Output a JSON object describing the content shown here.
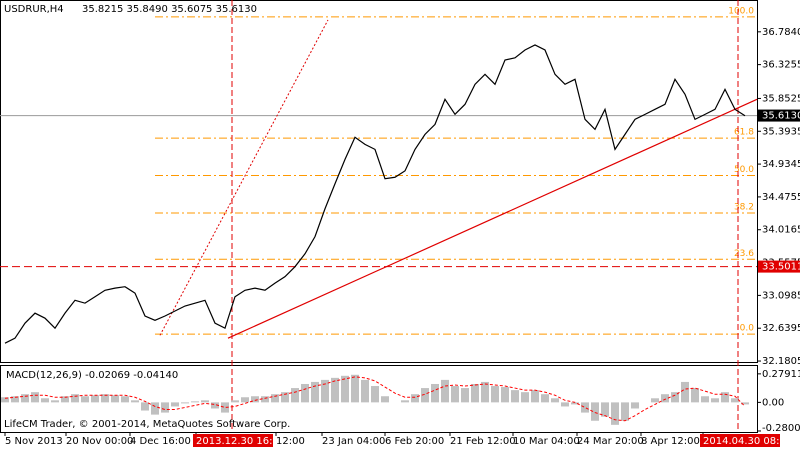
{
  "chart_data": [
    {
      "type": "line",
      "title": "USDRUR,H4",
      "quote": "35.8215 35.8490 35.6075 35.6130",
      "color": "#000000",
      "values": [
        32.43,
        32.5,
        32.71,
        32.85,
        32.78,
        32.64,
        32.85,
        33.03,
        32.99,
        33.08,
        33.17,
        33.2,
        33.22,
        33.13,
        32.81,
        32.75,
        32.81,
        32.88,
        32.95,
        32.99,
        33.03,
        32.71,
        32.64,
        33.08,
        33.17,
        33.2,
        33.17,
        33.27,
        33.36,
        33.5,
        33.68,
        33.92,
        34.31,
        34.66,
        35.0,
        35.31,
        35.21,
        35.14,
        34.73,
        34.75,
        34.84,
        35.14,
        35.35,
        35.49,
        35.84,
        35.63,
        35.77,
        36.05,
        36.19,
        36.05,
        36.39,
        36.42,
        36.53,
        36.6,
        36.53,
        36.19,
        36.05,
        36.12,
        35.56,
        35.42,
        35.7,
        35.14,
        35.35,
        35.56,
        35.63,
        35.7,
        35.77,
        36.12,
        35.91,
        35.56,
        35.63,
        35.7,
        35.98,
        35.7,
        35.61
      ],
      "ylim": [
        32.167,
        37.229
      ],
      "yticks": [
        {
          "value": 36.784,
          "label": "36.7840"
        },
        {
          "value": 36.3255,
          "label": "36.3255"
        },
        {
          "value": 35.8525,
          "label": "35.8525"
        },
        {
          "value": 35.3935,
          "label": "35.3935"
        },
        {
          "value": 34.9345,
          "label": "34.9345"
        },
        {
          "value": 34.4755,
          "label": "34.4755"
        },
        {
          "value": 34.0165,
          "label": "34.0165"
        },
        {
          "value": 33.5575,
          "label": "33.5575"
        },
        {
          "value": 33.0985,
          "label": "33.0985"
        },
        {
          "value": 32.6395,
          "label": "32.6395"
        },
        {
          "value": 32.1805,
          "label": "32.1805"
        }
      ],
      "xticks": [
        {
          "value": 0,
          "label": "5 Nov 2013"
        },
        {
          "value": 6.1,
          "label": "20 Nov 00:00"
        },
        {
          "value": 12.5,
          "label": "4 Dec 16:00"
        },
        {
          "value": 19.1,
          "label": "2013.12.30 16:00",
          "highlight": true
        },
        {
          "value": 27.1,
          "label": "12:00"
        },
        {
          "value": 31.7,
          "label": "23 Jan 04:00"
        },
        {
          "value": 38,
          "label": "6 Feb 20:00"
        },
        {
          "value": 44.5,
          "label": "21 Feb 12:00"
        },
        {
          "value": 50.8,
          "label": "10 Mar 04:00"
        },
        {
          "value": 57.2,
          "label": "24 Mar 20:00"
        },
        {
          "value": 63.6,
          "label": "8 Apr 12:00"
        },
        {
          "value": 69.8,
          "label": "2014.04.30 08:00",
          "highlight": true
        }
      ],
      "price_line": {
        "value": 35.613,
        "label": "35.6130"
      },
      "level_line": {
        "value": 33.5011,
        "label": "33.5011"
      },
      "fibo_levels": [
        {
          "value": 36.993,
          "label": "100.0"
        },
        {
          "value": 35.298,
          "label": "61.8"
        },
        {
          "value": 34.775,
          "label": "50.0"
        },
        {
          "value": 34.251,
          "label": "38.2"
        },
        {
          "value": 33.603,
          "label": "23.6"
        },
        {
          "value": 32.556,
          "label": "0.0"
        }
      ],
      "trendline": {
        "x": [
          22.3,
          75.2
        ],
        "y": [
          32.5,
          35.84
        ]
      },
      "fibo_line": {
        "x": [
          15.5,
          32.3
        ],
        "y": [
          32.54,
          36.95
        ]
      },
      "vlines": [
        22.7,
        73.3
      ],
      "footer": "LifeCM Trader, © 2001-2014, MetaQuotes Software Corp."
    },
    {
      "type": "bar",
      "title": "MACD(12,26,9) -0.02069 -0.04140",
      "color": "#c0c0c0",
      "signal_color": "#ff0000",
      "values": [
        0.05,
        0.06,
        0.08,
        0.1,
        0.04,
        0.02,
        0.06,
        0.08,
        0.06,
        0.07,
        0.08,
        0.07,
        0.06,
        0.02,
        -0.08,
        -0.12,
        -0.1,
        -0.04,
        -0.01,
        0.01,
        0.02,
        -0.06,
        -0.1,
        0.02,
        0.05,
        0.06,
        0.06,
        0.08,
        0.1,
        0.14,
        0.18,
        0.2,
        0.22,
        0.24,
        0.26,
        0.27,
        0.22,
        0.16,
        0.06,
        0.0,
        0.02,
        0.08,
        0.14,
        0.18,
        0.22,
        0.16,
        0.14,
        0.18,
        0.2,
        0.16,
        0.15,
        0.12,
        0.1,
        0.12,
        0.08,
        0.04,
        -0.04,
        -0.02,
        -0.1,
        -0.18,
        -0.14,
        -0.22,
        -0.18,
        -0.06,
        0.0,
        0.04,
        0.08,
        0.1,
        0.2,
        0.14,
        0.06,
        0.04,
        0.1,
        0.04,
        -0.02
      ],
      "signal": [
        0.04,
        0.05,
        0.06,
        0.07,
        0.07,
        0.05,
        0.05,
        0.06,
        0.07,
        0.07,
        0.07,
        0.07,
        0.07,
        0.05,
        0.01,
        -0.04,
        -0.07,
        -0.07,
        -0.05,
        -0.03,
        -0.01,
        -0.02,
        -0.05,
        -0.04,
        -0.01,
        0.02,
        0.04,
        0.06,
        0.08,
        0.1,
        0.13,
        0.16,
        0.18,
        0.21,
        0.23,
        0.25,
        0.24,
        0.21,
        0.15,
        0.09,
        0.05,
        0.05,
        0.08,
        0.12,
        0.16,
        0.17,
        0.16,
        0.17,
        0.18,
        0.17,
        0.16,
        0.14,
        0.12,
        0.12,
        0.1,
        0.07,
        0.02,
        0.0,
        -0.05,
        -0.1,
        -0.13,
        -0.17,
        -0.18,
        -0.13,
        -0.07,
        -0.02,
        0.03,
        0.07,
        0.13,
        0.14,
        0.11,
        0.08,
        0.08,
        0.06,
        -0.04
      ],
      "ylim": [
        -0.29,
        0.356
      ],
      "yticks": [
        0.27911,
        {
          "value": 0,
          "label": "0.00"
        },
        -0.28001
      ]
    }
  ]
}
